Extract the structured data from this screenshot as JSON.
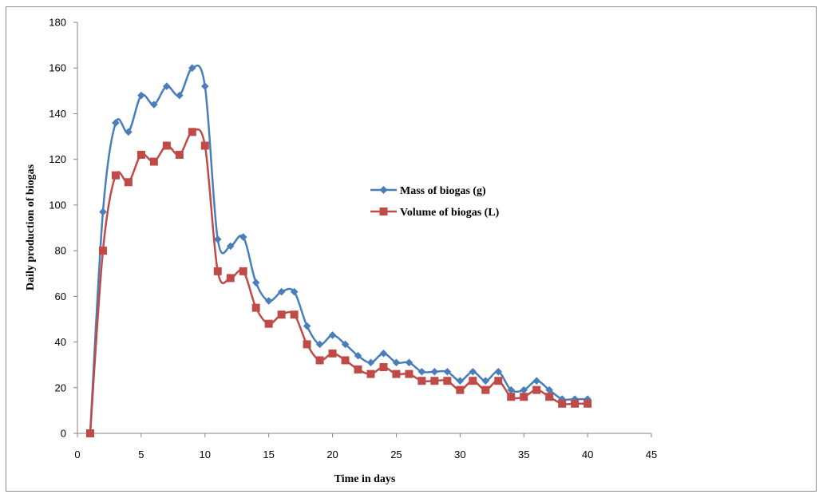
{
  "chart_data": {
    "type": "line",
    "xlabel": "Time  in days",
    "ylabel": "Daily production of biogas",
    "xlim": [
      0,
      45
    ],
    "ylim": [
      0,
      180
    ],
    "x_ticks": [
      0,
      5,
      10,
      15,
      20,
      25,
      30,
      35,
      40,
      45
    ],
    "y_ticks": [
      0,
      20,
      40,
      60,
      80,
      100,
      120,
      140,
      160,
      180
    ],
    "grid": false,
    "legend_position": "center-right",
    "x": [
      1,
      2,
      3,
      4,
      5,
      6,
      7,
      8,
      9,
      10,
      11,
      12,
      13,
      14,
      15,
      16,
      17,
      18,
      19,
      20,
      21,
      22,
      23,
      24,
      25,
      26,
      27,
      28,
      29,
      30,
      31,
      32,
      33,
      34,
      35,
      36,
      37,
      38,
      39,
      40
    ],
    "series": [
      {
        "name": "Mass of  biogas (g)",
        "color": "#4a7ebb",
        "marker": "diamond",
        "values": [
          0,
          97,
          136,
          132,
          148,
          144,
          152,
          148,
          160,
          152,
          85,
          82,
          86,
          66,
          58,
          62,
          62,
          47,
          39,
          43,
          39,
          34,
          31,
          35,
          31,
          31,
          27,
          27,
          27,
          23,
          27,
          23,
          27,
          19,
          19,
          23,
          19,
          15,
          15,
          15
        ]
      },
      {
        "name": "Volume of biogas (L)",
        "color": "#be4b48",
        "marker": "square",
        "values": [
          0,
          80,
          113,
          110,
          122,
          119,
          126,
          122,
          132,
          126,
          71,
          68,
          71,
          55,
          48,
          52,
          52,
          39,
          32,
          35,
          32,
          28,
          26,
          29,
          26,
          26,
          23,
          23,
          23,
          19,
          23,
          19,
          23,
          16,
          16,
          19,
          16,
          13,
          13,
          13
        ]
      }
    ]
  }
}
